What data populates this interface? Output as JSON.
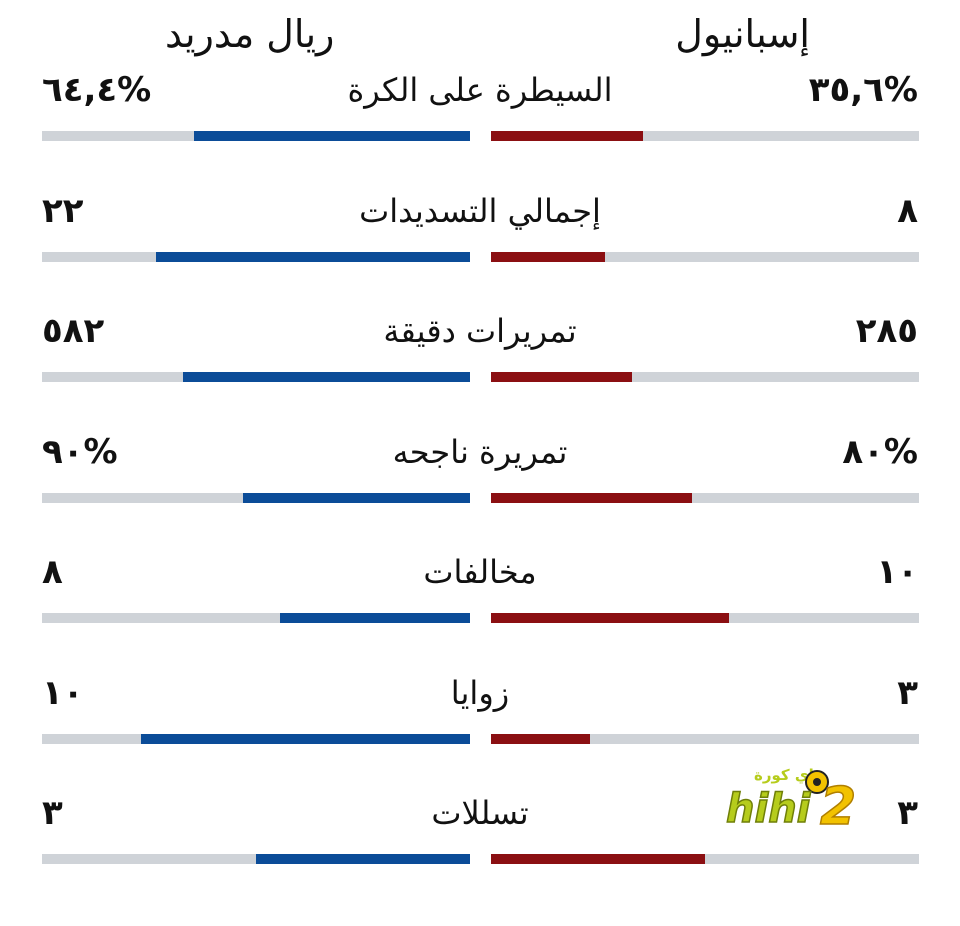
{
  "teams": {
    "right": "إسبانيول",
    "left": "ريال مدريد"
  },
  "colors": {
    "right_bar": "#8b0f12",
    "left_bar": "#0b4c98",
    "track": "#cfd3d8"
  },
  "stats": [
    {
      "label": "السيطرة على الكرة",
      "right_display": "٣٥,٦%",
      "left_display": "٦٤,٤%",
      "right_value": 35.6,
      "left_value": 64.4
    },
    {
      "label": "إجمالي التسديدات",
      "right_display": "٨",
      "left_display": "٢٢",
      "right_value": 8,
      "left_value": 22
    },
    {
      "label": "تمريرات دقيقة",
      "right_display": "٢٨٥",
      "left_display": "٥٨٢",
      "right_value": 285,
      "left_value": 582
    },
    {
      "label": "تمريرة ناجحه",
      "right_display": "٨٠%",
      "left_display": "٩٠%",
      "right_value": 80,
      "left_value": 90
    },
    {
      "label": "مخالفات",
      "right_display": "١٠",
      "left_display": "٨",
      "right_value": 10,
      "left_value": 8
    },
    {
      "label": "زوايا",
      "right_display": "٣",
      "left_display": "١٠",
      "right_value": 3,
      "left_value": 10
    },
    {
      "label": "تسللات",
      "right_display": "٣",
      "left_display": "٣",
      "right_value": 3,
      "left_value": 3
    }
  ],
  "watermark": {
    "text": "hihi2",
    "arabic": "هاي كورة"
  },
  "chart_data": {
    "type": "bar",
    "categories": [
      "السيطرة على الكرة",
      "إجمالي التسديدات",
      "تمريرات دقيقة",
      "تمريرة ناجحه",
      "مخالفات",
      "زوايا",
      "تسللات"
    ],
    "series": [
      {
        "name": "إسبانيول",
        "values": [
          35.6,
          8,
          285,
          80,
          10,
          3,
          3
        ]
      },
      {
        "name": "ريال مدريد",
        "values": [
          64.4,
          22,
          582,
          90,
          8,
          10,
          3
        ]
      }
    ]
  }
}
